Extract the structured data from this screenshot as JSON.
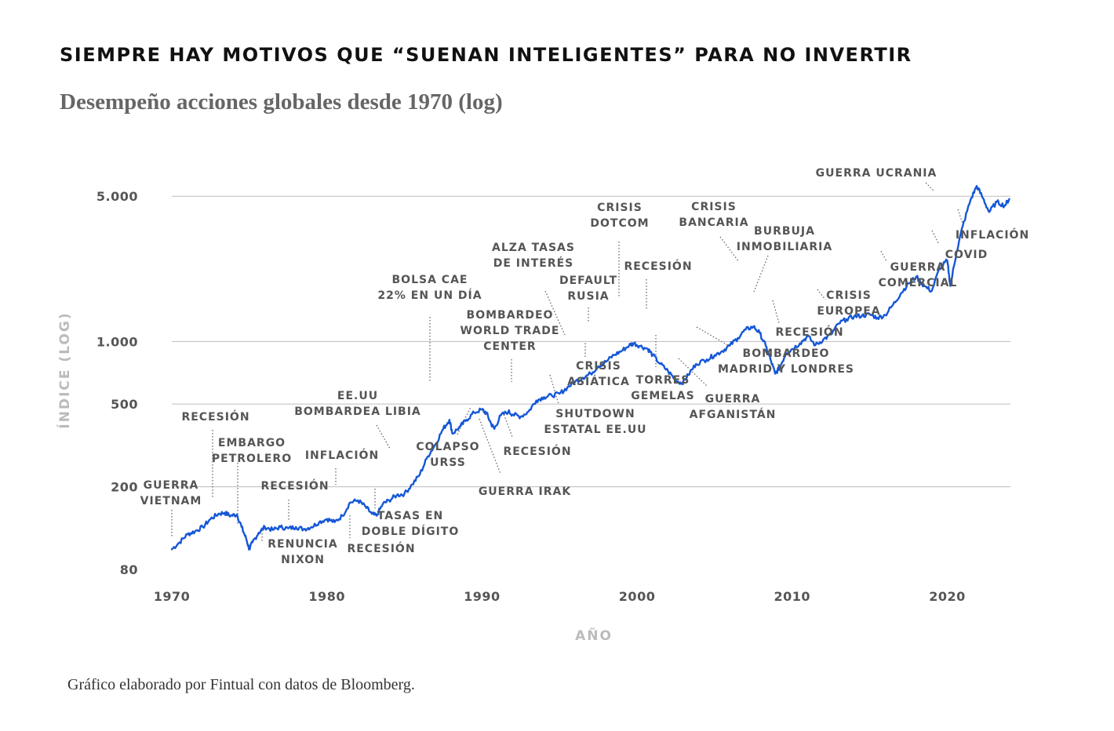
{
  "title": "SIEMPRE HAY MOTIVOS QUE “SUENAN INTELIGENTES” PARA NO INVERTIR",
  "subtitle": "Desempeño acciones globales desde 1970 (log)",
  "source": "Gráfico elaborado por Fintual con datos de Bloomberg.",
  "chart_data": {
    "type": "line",
    "xlabel": "AÑO",
    "ylabel": "ÍNDICE (LOG)",
    "y_scale": "log",
    "grid": true,
    "xlim": [
      1970,
      2022
    ],
    "ylim": [
      80,
      6500
    ],
    "x_ticks": [
      1970,
      1980,
      1990,
      2000,
      2010,
      2020
    ],
    "y_ticks": [
      80,
      200,
      500,
      1000,
      5000
    ],
    "y_tick_labels": [
      "80",
      "200",
      "500",
      "1.000",
      "5.000"
    ],
    "series": [
      {
        "color": "#1557d6",
        "points": [
          [
            1970.0,
            100
          ],
          [
            1970.5,
            108
          ],
          [
            1971.0,
            118
          ],
          [
            1971.5,
            122
          ],
          [
            1972.0,
            128
          ],
          [
            1972.5,
            140
          ],
          [
            1973.0,
            148
          ],
          [
            1973.4,
            150
          ],
          [
            1973.8,
            145
          ],
          [
            1974.2,
            147
          ],
          [
            1974.5,
            128
          ],
          [
            1974.8,
            112
          ],
          [
            1975.0,
            100
          ],
          [
            1975.2,
            108
          ],
          [
            1975.6,
            120
          ],
          [
            1976.0,
            128
          ],
          [
            1976.5,
            124
          ],
          [
            1977.0,
            128
          ],
          [
            1977.5,
            126
          ],
          [
            1978.0,
            128
          ],
          [
            1978.5,
            125
          ],
          [
            1979.0,
            128
          ],
          [
            1979.5,
            135
          ],
          [
            1980.0,
            140
          ],
          [
            1980.5,
            135
          ],
          [
            1981.0,
            145
          ],
          [
            1981.5,
            168
          ],
          [
            1982.0,
            172
          ],
          [
            1982.5,
            160
          ],
          [
            1982.9,
            148
          ],
          [
            1983.2,
            145
          ],
          [
            1983.6,
            165
          ],
          [
            1984.0,
            172
          ],
          [
            1984.5,
            182
          ],
          [
            1985.0,
            185
          ],
          [
            1985.5,
            205
          ],
          [
            1986.0,
            230
          ],
          [
            1986.5,
            280
          ],
          [
            1987.0,
            320
          ],
          [
            1987.5,
            380
          ],
          [
            1987.9,
            420
          ],
          [
            1988.1,
            360
          ],
          [
            1988.6,
            390
          ],
          [
            1989.0,
            420
          ],
          [
            1989.5,
            455
          ],
          [
            1990.0,
            470
          ],
          [
            1990.3,
            450
          ],
          [
            1990.6,
            400
          ],
          [
            1990.8,
            380
          ],
          [
            1991.2,
            440
          ],
          [
            1991.7,
            460
          ],
          [
            1992.0,
            445
          ],
          [
            1992.5,
            435
          ],
          [
            1993.0,
            460
          ],
          [
            1993.5,
            520
          ],
          [
            1994.0,
            540
          ],
          [
            1994.5,
            550
          ],
          [
            1995.0,
            560
          ],
          [
            1995.5,
            600
          ],
          [
            1996.0,
            640
          ],
          [
            1996.5,
            670
          ],
          [
            1997.0,
            700
          ],
          [
            1997.5,
            760
          ],
          [
            1998.0,
            800
          ],
          [
            1998.5,
            860
          ],
          [
            1999.0,
            900
          ],
          [
            1999.5,
            960
          ],
          [
            1999.8,
            980
          ],
          [
            2000.2,
            950
          ],
          [
            2000.7,
            920
          ],
          [
            2001.0,
            860
          ],
          [
            2001.5,
            780
          ],
          [
            2002.0,
            720
          ],
          [
            2002.5,
            650
          ],
          [
            2002.9,
            630
          ],
          [
            2003.3,
            690
          ],
          [
            2003.8,
            780
          ],
          [
            2004.5,
            820
          ],
          [
            2005.0,
            860
          ],
          [
            2005.5,
            900
          ],
          [
            2006.0,
            960
          ],
          [
            2006.5,
            1040
          ],
          [
            2007.0,
            1140
          ],
          [
            2007.5,
            1180
          ],
          [
            2007.9,
            1100
          ],
          [
            2008.3,
            950
          ],
          [
            2008.6,
            820
          ],
          [
            2008.9,
            700
          ],
          [
            2009.2,
            750
          ],
          [
            2009.6,
            880
          ],
          [
            2010.0,
            920
          ],
          [
            2010.5,
            980
          ],
          [
            2011.0,
            1060
          ],
          [
            2011.5,
            960
          ],
          [
            2012.0,
            1020
          ],
          [
            2012.5,
            1080
          ],
          [
            2013.0,
            1220
          ],
          [
            2013.5,
            1280
          ],
          [
            2014.0,
            1320
          ],
          [
            2014.5,
            1330
          ],
          [
            2015.0,
            1350
          ],
          [
            2015.5,
            1300
          ],
          [
            2016.0,
            1340
          ],
          [
            2016.5,
            1500
          ],
          [
            2017.0,
            1700
          ],
          [
            2017.5,
            1900
          ],
          [
            2018.0,
            2050
          ],
          [
            2018.5,
            1850
          ],
          [
            2019.0,
            1750
          ],
          [
            2019.5,
            2250
          ],
          [
            2020.0,
            2450
          ],
          [
            2020.2,
            1850
          ],
          [
            2020.6,
            2700
          ],
          [
            2021.0,
            3600
          ],
          [
            2021.5,
            4800
          ],
          [
            2021.9,
            5600
          ],
          [
            2022.3,
            4900
          ],
          [
            2022.7,
            4200
          ],
          [
            2023.2,
            4700
          ],
          [
            2023.7,
            4500
          ],
          [
            2024.0,
            4850
          ]
        ]
      }
    ],
    "annotations": [
      {
        "text": "GUERRA VIETNAM",
        "x": 1970.0,
        "y": 100
      },
      {
        "text": "RECESIÓN",
        "x": 1973.0,
        "y": 148
      },
      {
        "text": "EMBARGO PETROLERO",
        "x": 1974.5,
        "y": 128
      },
      {
        "text": "RENUNCIA NIXON",
        "x": 1976.0,
        "y": 128
      },
      {
        "text": "RECESIÓN",
        "x": 1980.0,
        "y": 140
      },
      {
        "text": "INFLACIÓN",
        "x": 1981.5,
        "y": 168
      },
      {
        "text": "RECESIÓN",
        "x": 1982.9,
        "y": 148
      },
      {
        "text": "TASAS EN DOBLE DÍGITO",
        "x": 1984.0,
        "y": 172
      },
      {
        "text": "EE.UU BOMBARDEA LIBIA",
        "x": 1986.0,
        "y": 230
      },
      {
        "text": "BOLSA CAE 22% EN UN DÍA",
        "x": 1987.9,
        "y": 420
      },
      {
        "text": "COLAPSO URSS",
        "x": 1989.5,
        "y": 455
      },
      {
        "text": "GUERRA IRAK",
        "x": 1990.8,
        "y": 380
      },
      {
        "text": "RECESIÓN",
        "x": 1991.7,
        "y": 460
      },
      {
        "text": "BOMBARDEO WORLD TRADE CENTER",
        "x": 1993.0,
        "y": 460
      },
      {
        "text": "SHUTDOWN ESTATAL EE.UU",
        "x": 1995.5,
        "y": 600
      },
      {
        "text": "ALZA TASAS DE INTERÉS",
        "x": 1996.0,
        "y": 640
      },
      {
        "text": "CRISIS ASIÁTICA",
        "x": 1997.0,
        "y": 700
      },
      {
        "text": "DEFAULT RUSIA",
        "x": 1998.0,
        "y": 800
      },
      {
        "text": "CRISIS DOTCOM",
        "x": 1999.8,
        "y": 980
      },
      {
        "text": "RECESIÓN",
        "x": 2001.0,
        "y": 860
      },
      {
        "text": "TORRES GEMELAS",
        "x": 2001.5,
        "y": 780
      },
      {
        "text": "GUERRA AFGANISTÁN",
        "x": 2002.9,
        "y": 630
      },
      {
        "text": "BOMBARDEO MADRID Y LONDRES",
        "x": 2004.5,
        "y": 820
      },
      {
        "text": "CRISIS BANCARIA",
        "x": 2007.0,
        "y": 1140
      },
      {
        "text": "BURBUJA INMOBILIARIA",
        "x": 2008.3,
        "y": 950
      },
      {
        "text": "RECESIÓN",
        "x": 2009.6,
        "y": 880
      },
      {
        "text": "CRISIS EUROPEA",
        "x": 2011.5,
        "y": 960
      },
      {
        "text": "GUERRA COMERCIAL",
        "x": 2018.5,
        "y": 1850
      },
      {
        "text": "COVID",
        "x": 2020.2,
        "y": 1850
      },
      {
        "text": "GUERRA UCRANIA",
        "x": 2021.9,
        "y": 5600
      },
      {
        "text": "INFLACIÓN",
        "x": 2022.7,
        "y": 4200
      }
    ]
  }
}
